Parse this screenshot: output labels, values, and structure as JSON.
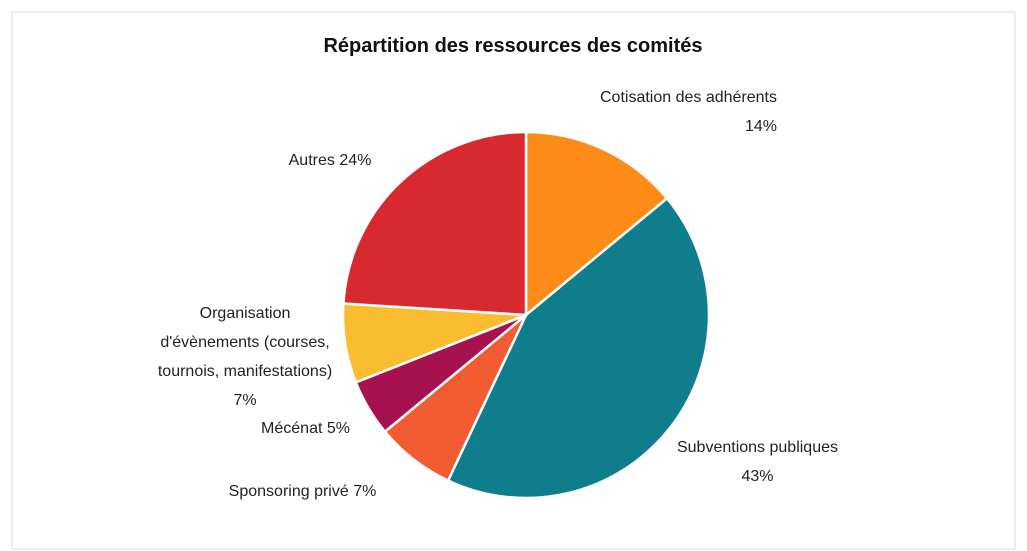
{
  "chart_data": {
    "type": "pie",
    "title": "Répartition des ressources des comités",
    "categories": [
      "Cotisation des adhérents",
      "Subventions publiques",
      "Sponsoring privé",
      "Mécénat",
      "Organisation d'évènements (courses, tournois, manifestations)",
      "Autres"
    ],
    "values": [
      14,
      43,
      7,
      5,
      7,
      24
    ],
    "value_labels": [
      "14%",
      "43%",
      "7%",
      "5%",
      "7%",
      "24%"
    ],
    "colors": [
      "#fd8b17",
      "#0f7d8b",
      "#f05b31",
      "#a8114f",
      "#fbbd30",
      "#d7292e"
    ]
  }
}
